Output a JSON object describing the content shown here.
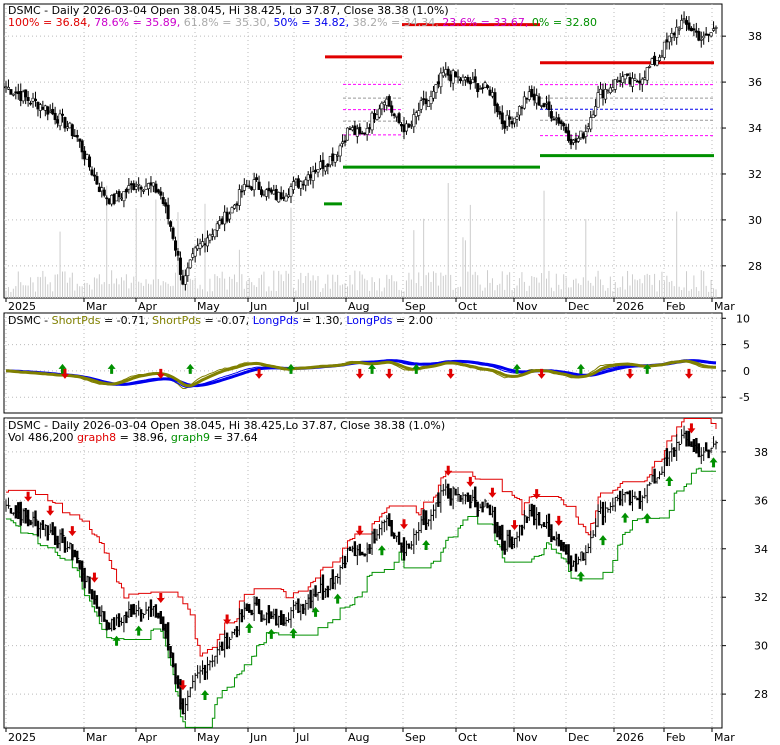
{
  "colors": {
    "red": "#e00000",
    "green": "#009000",
    "magenta": "#cc00cc",
    "blue": "#0000ee",
    "olive": "#808000",
    "gray": "#aaaaaa",
    "black": "#000000",
    "fib_pink": "#ff00ff"
  },
  "panel1": {
    "ticker": "DSMC",
    "header": "DSMC - Daily 2026-03-04 Open 38.045, Hi 38.425, Lo 37.87, Close 38.38 (1.0%)",
    "fib_labels": [
      {
        "text": "100% = 36.84,",
        "color": "#e00000"
      },
      {
        "text": "78.6% = 35.89,",
        "color": "#cc00cc"
      },
      {
        "text": "61.8% = 35.30,",
        "color": "#aaaaaa"
      },
      {
        "text": "50% = 34.82,",
        "color": "#0000ee"
      },
      {
        "text": "38.2% = 34.34,",
        "color": "#aaaaaa"
      },
      {
        "text": "23.6% = 33.67,",
        "color": "#cc00cc"
      },
      {
        "text": "0% = 32.80",
        "color": "#009000"
      }
    ],
    "y_ticks": [
      "38",
      "36",
      "34",
      "32",
      "30",
      "28"
    ],
    "x_labels": [
      "2025",
      "Mar",
      "Apr",
      "May",
      "Jun",
      "Jul",
      "Aug",
      "Sep",
      "Oct",
      "Nov",
      "Dec",
      "2026",
      "Feb",
      "Mar"
    ]
  },
  "panel2": {
    "header_parts": [
      {
        "text": "DSMC - ",
        "color": "#000000"
      },
      {
        "text": "ShortPds",
        "color": "#808000"
      },
      {
        "text": " = -0.71, ",
        "color": "#000000"
      },
      {
        "text": "ShortPds",
        "color": "#808000"
      },
      {
        "text": " = -0.07, ",
        "color": "#000000"
      },
      {
        "text": "LongPds",
        "color": "#0000ee"
      },
      {
        "text": " = 1.30, ",
        "color": "#000000"
      },
      {
        "text": "LongPds",
        "color": "#0000ee"
      },
      {
        "text": " = 2.00",
        "color": "#000000"
      }
    ],
    "y_ticks": [
      "10",
      "5",
      "0",
      "-5"
    ]
  },
  "panel3": {
    "header": "DSMC - Daily 2026-03-04 Open 38.045, Hi 38.425,Lo 37.87, Close 38.38 (1.0%)",
    "sub_parts": [
      {
        "text": "Vol 486,200 ",
        "color": "#000000"
      },
      {
        "text": "graph8",
        "color": "#e00000"
      },
      {
        "text": " = 38.96, ",
        "color": "#000000"
      },
      {
        "text": "graph9",
        "color": "#009000"
      },
      {
        "text": " = 37.64",
        "color": "#000000"
      }
    ],
    "y_ticks": [
      "38",
      "36",
      "34",
      "32",
      "30",
      "28"
    ],
    "x_labels": [
      "2025",
      "Mar",
      "Apr",
      "May",
      "Jun",
      "Jul",
      "Aug",
      "Sep",
      "Oct",
      "Nov",
      "Dec",
      "2026",
      "Feb",
      "Mar"
    ]
  },
  "chart_data": {
    "type": "line",
    "ticker": "DSMC",
    "x_start": "2025-01-02",
    "x_end": "2026-03-04",
    "close_series": [
      35.8,
      35.5,
      35.2,
      35.0,
      34.6,
      34.2,
      33.6,
      32.4,
      31.3,
      30.8,
      31.2,
      31.6,
      31.5,
      31.2,
      29.6,
      27.2,
      28.6,
      29.3,
      29.8,
      30.4,
      31.3,
      31.6,
      31.2,
      31.0,
      31.4,
      31.7,
      32.2,
      32.5,
      33.0,
      34.0,
      33.6,
      34.5,
      35.4,
      34.3,
      33.9,
      34.9,
      35.3,
      36.4,
      36.2,
      36.0,
      35.8,
      35.6,
      34.2,
      34.5,
      35.4,
      35.2,
      34.7,
      34.2,
      33.3,
      33.9,
      35.4,
      35.8,
      36.2,
      35.9,
      36.4,
      37.0,
      37.8,
      38.6,
      38.3,
      37.8,
      38.38
    ],
    "volume_note": "Vol 486,200",
    "fib_levels": {
      "100%": 36.84,
      "78.6%": 35.89,
      "61.8%": 35.3,
      "50%": 34.82,
      "38.2%": 34.34,
      "23.6%": 33.67,
      "0%": 32.8
    },
    "ylim_price": [
      26.6,
      39.4
    ],
    "ylim_osc": [
      -8,
      11
    ],
    "graph8": 38.96,
    "graph9": 37.64
  }
}
